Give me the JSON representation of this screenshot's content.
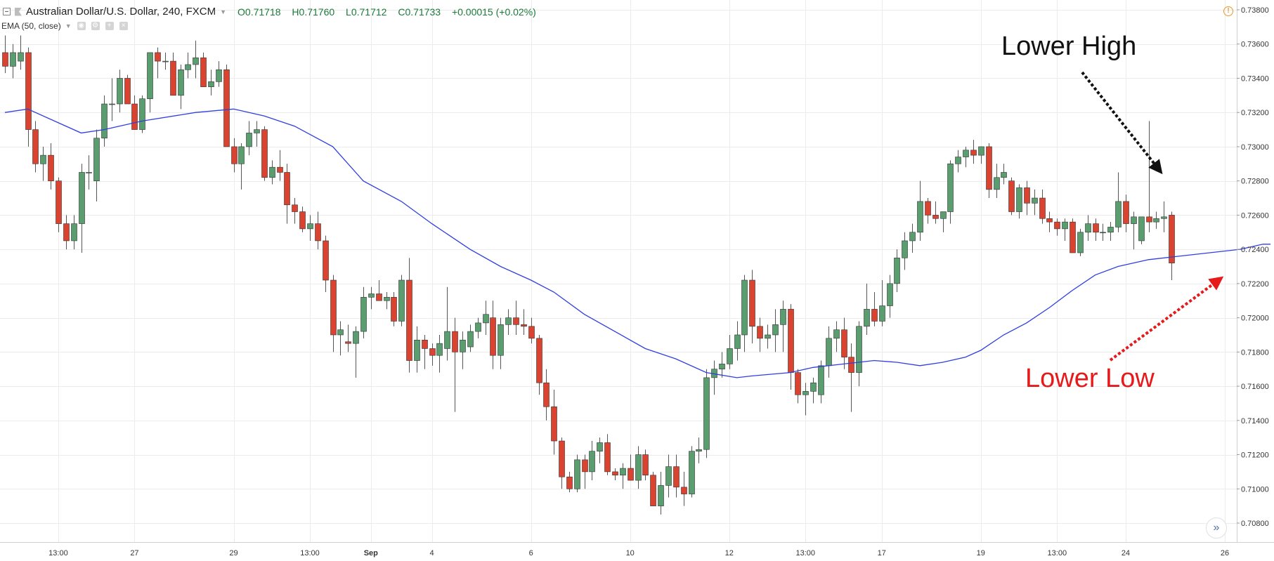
{
  "header": {
    "symbol": "Australian Dollar/U.S. Dollar, 240, FXCM",
    "open": "O0.71718",
    "high": "H0.71760",
    "low": "L0.71712",
    "close": "C0.71733",
    "change": "+0.00015 (+0.02%)",
    "indicator": "EMA (50, close)",
    "warn_icon": "!",
    "scroll_icon": "»"
  },
  "annotations": {
    "lower_high": "Lower High",
    "lower_low": "Lower Low"
  },
  "colors": {
    "up": "#5a9e6f",
    "down": "#d9432f",
    "ema": "#2f3fe0",
    "grid": "#ececec",
    "axis_text": "#333333",
    "lower_high_text": "#111111",
    "lower_low_text": "#e6191b"
  },
  "chart_data": {
    "type": "candlestick",
    "symbol": "AUD/USD",
    "y_ticks": [
      0.708,
      0.71,
      0.712,
      0.714,
      0.716,
      0.718,
      0.72,
      0.722,
      0.724,
      0.726,
      0.728,
      0.73,
      0.732,
      0.734,
      0.736,
      0.738
    ],
    "x_ticks": [
      {
        "i": 7,
        "label": "13:00"
      },
      {
        "i": 17,
        "label": "27"
      },
      {
        "i": 30,
        "label": "29"
      },
      {
        "i": 40,
        "label": "13:00"
      },
      {
        "i": 48,
        "label": "Sep"
      },
      {
        "i": 56,
        "label": "4"
      },
      {
        "i": 69,
        "label": "6"
      },
      {
        "i": 82,
        "label": "10"
      },
      {
        "i": 95,
        "label": "12"
      },
      {
        "i": 105,
        "label": "13:00"
      },
      {
        "i": 115,
        "label": "17"
      },
      {
        "i": 128,
        "label": "19"
      },
      {
        "i": 138,
        "label": "13:00"
      },
      {
        "i": 147,
        "label": "24"
      },
      {
        "i": 160,
        "label": "26"
      }
    ],
    "candles": [
      [
        0.7355,
        0.7365,
        0.7343,
        0.7347
      ],
      [
        0.7347,
        0.736,
        0.734,
        0.7355
      ],
      [
        0.735,
        0.7365,
        0.7345,
        0.7355
      ],
      [
        0.7355,
        0.7358,
        0.73,
        0.731
      ],
      [
        0.731,
        0.7315,
        0.7285,
        0.729
      ],
      [
        0.729,
        0.73,
        0.728,
        0.7295
      ],
      [
        0.7295,
        0.7302,
        0.7275,
        0.728
      ],
      [
        0.728,
        0.7282,
        0.725,
        0.7255
      ],
      [
        0.7255,
        0.726,
        0.724,
        0.7245
      ],
      [
        0.7245,
        0.726,
        0.724,
        0.7255
      ],
      [
        0.7255,
        0.729,
        0.7238,
        0.7285
      ],
      [
        0.7285,
        0.7295,
        0.7275,
        0.7285
      ],
      [
        0.728,
        0.731,
        0.7268,
        0.7305
      ],
      [
        0.7305,
        0.733,
        0.73,
        0.7325
      ],
      [
        0.7325,
        0.734,
        0.7315,
        0.7325
      ],
      [
        0.7325,
        0.7345,
        0.732,
        0.734
      ],
      [
        0.734,
        0.7342,
        0.7325,
        0.7325
      ],
      [
        0.7325,
        0.733,
        0.731,
        0.731
      ],
      [
        0.731,
        0.733,
        0.7308,
        0.7328
      ],
      [
        0.7328,
        0.7355,
        0.732,
        0.7355
      ],
      [
        0.7355,
        0.7358,
        0.734,
        0.735
      ],
      [
        0.735,
        0.7355,
        0.7345,
        0.735
      ],
      [
        0.735,
        0.7355,
        0.733,
        0.733
      ],
      [
        0.733,
        0.7348,
        0.7322,
        0.7345
      ],
      [
        0.7345,
        0.7355,
        0.734,
        0.7348
      ],
      [
        0.7348,
        0.7362,
        0.734,
        0.7352
      ],
      [
        0.7352,
        0.7355,
        0.7335,
        0.7335
      ],
      [
        0.7335,
        0.7345,
        0.733,
        0.7338
      ],
      [
        0.7338,
        0.735,
        0.7335,
        0.7345
      ],
      [
        0.7345,
        0.7348,
        0.73,
        0.73
      ],
      [
        0.73,
        0.7305,
        0.7285,
        0.729
      ],
      [
        0.729,
        0.7302,
        0.7275,
        0.73
      ],
      [
        0.73,
        0.7315,
        0.7295,
        0.7308
      ],
      [
        0.7308,
        0.7315,
        0.73,
        0.731
      ],
      [
        0.731,
        0.7312,
        0.728,
        0.7282
      ],
      [
        0.7282,
        0.7292,
        0.7278,
        0.7288
      ],
      [
        0.7288,
        0.7298,
        0.728,
        0.7285
      ],
      [
        0.7285,
        0.729,
        0.7255,
        0.7266
      ],
      [
        0.7266,
        0.727,
        0.7255,
        0.7262
      ],
      [
        0.7262,
        0.7265,
        0.725,
        0.7252
      ],
      [
        0.7252,
        0.726,
        0.7245,
        0.7255
      ],
      [
        0.7255,
        0.7262,
        0.724,
        0.7245
      ],
      [
        0.7245,
        0.7248,
        0.7215,
        0.7222
      ],
      [
        0.7222,
        0.7225,
        0.718,
        0.719
      ],
      [
        0.719,
        0.7198,
        0.7178,
        0.7193
      ],
      [
        0.7186,
        0.7196,
        0.718,
        0.7185
      ],
      [
        0.7185,
        0.7195,
        0.7165,
        0.7192
      ],
      [
        0.7192,
        0.7218,
        0.7188,
        0.7212
      ],
      [
        0.7212,
        0.7218,
        0.7205,
        0.7214
      ],
      [
        0.7214,
        0.7222,
        0.721,
        0.721
      ],
      [
        0.721,
        0.7215,
        0.7205,
        0.7212
      ],
      [
        0.7212,
        0.7215,
        0.7195,
        0.7198
      ],
      [
        0.7198,
        0.7225,
        0.7195,
        0.7222
      ],
      [
        0.7222,
        0.7235,
        0.7168,
        0.7175
      ],
      [
        0.7175,
        0.7195,
        0.7168,
        0.7187
      ],
      [
        0.7187,
        0.719,
        0.717,
        0.7182
      ],
      [
        0.7182,
        0.7185,
        0.7172,
        0.7178
      ],
      [
        0.7178,
        0.719,
        0.7168,
        0.7185
      ],
      [
        0.7182,
        0.7218,
        0.7175,
        0.7192
      ],
      [
        0.7192,
        0.72,
        0.7145,
        0.718
      ],
      [
        0.718,
        0.7192,
        0.717,
        0.7187
      ],
      [
        0.7183,
        0.7196,
        0.718,
        0.7192
      ],
      [
        0.7192,
        0.72,
        0.7188,
        0.7197
      ],
      [
        0.7197,
        0.721,
        0.719,
        0.7202
      ],
      [
        0.72,
        0.721,
        0.717,
        0.7178
      ],
      [
        0.7178,
        0.72,
        0.717,
        0.7196
      ],
      [
        0.7196,
        0.7205,
        0.719,
        0.72
      ],
      [
        0.72,
        0.721,
        0.719,
        0.7196
      ],
      [
        0.7196,
        0.7205,
        0.719,
        0.7195
      ],
      [
        0.7195,
        0.72,
        0.7185,
        0.7188
      ],
      [
        0.7188,
        0.719,
        0.7155,
        0.7162
      ],
      [
        0.7162,
        0.717,
        0.714,
        0.7148
      ],
      [
        0.7148,
        0.7158,
        0.712,
        0.7128
      ],
      [
        0.7128,
        0.713,
        0.71,
        0.7107
      ],
      [
        0.7107,
        0.711,
        0.7098,
        0.71
      ],
      [
        0.71,
        0.712,
        0.7098,
        0.7117
      ],
      [
        0.7117,
        0.712,
        0.71,
        0.711
      ],
      [
        0.711,
        0.7128,
        0.7105,
        0.7122
      ],
      [
        0.7122,
        0.713,
        0.7115,
        0.7127
      ],
      [
        0.7127,
        0.7132,
        0.7108,
        0.711
      ],
      [
        0.711,
        0.7112,
        0.7105,
        0.7108
      ],
      [
        0.7108,
        0.7115,
        0.71,
        0.7112
      ],
      [
        0.7112,
        0.712,
        0.7105,
        0.7105
      ],
      [
        0.7105,
        0.7125,
        0.71,
        0.712
      ],
      [
        0.712,
        0.7123,
        0.7105,
        0.7108
      ],
      [
        0.7108,
        0.711,
        0.709,
        0.709
      ],
      [
        0.709,
        0.711,
        0.7085,
        0.7102
      ],
      [
        0.7102,
        0.712,
        0.7095,
        0.7113
      ],
      [
        0.7113,
        0.712,
        0.7095,
        0.7101
      ],
      [
        0.7101,
        0.711,
        0.709,
        0.7097
      ],
      [
        0.7097,
        0.7125,
        0.7095,
        0.7122
      ],
      [
        0.7122,
        0.713,
        0.7115,
        0.7123
      ],
      [
        0.7123,
        0.717,
        0.7118,
        0.7165
      ],
      [
        0.7165,
        0.7175,
        0.7155,
        0.717
      ],
      [
        0.717,
        0.718,
        0.7165,
        0.7173
      ],
      [
        0.7173,
        0.719,
        0.717,
        0.7182
      ],
      [
        0.7182,
        0.7198,
        0.7175,
        0.719
      ],
      [
        0.719,
        0.7225,
        0.718,
        0.7222
      ],
      [
        0.7222,
        0.7228,
        0.7185,
        0.7195
      ],
      [
        0.7195,
        0.72,
        0.718,
        0.7188
      ],
      [
        0.7188,
        0.7196,
        0.7182,
        0.719
      ],
      [
        0.719,
        0.7205,
        0.718,
        0.7196
      ],
      [
        0.7196,
        0.721,
        0.718,
        0.7205
      ],
      [
        0.7205,
        0.7208,
        0.7158,
        0.7168
      ],
      [
        0.7168,
        0.717,
        0.715,
        0.7155
      ],
      [
        0.7155,
        0.7162,
        0.7143,
        0.7157
      ],
      [
        0.7157,
        0.7165,
        0.715,
        0.7162
      ],
      [
        0.7155,
        0.7175,
        0.715,
        0.7172
      ],
      [
        0.7172,
        0.7195,
        0.7165,
        0.7188
      ],
      [
        0.7188,
        0.7198,
        0.718,
        0.7193
      ],
      [
        0.7193,
        0.72,
        0.717,
        0.7177
      ],
      [
        0.7177,
        0.7185,
        0.7145,
        0.7168
      ],
      [
        0.7168,
        0.7198,
        0.716,
        0.7195
      ],
      [
        0.7195,
        0.722,
        0.719,
        0.7205
      ],
      [
        0.7205,
        0.7215,
        0.7195,
        0.7198
      ],
      [
        0.7198,
        0.7222,
        0.7195,
        0.7207
      ],
      [
        0.7207,
        0.7225,
        0.72,
        0.722
      ],
      [
        0.722,
        0.724,
        0.7215,
        0.7235
      ],
      [
        0.7235,
        0.725,
        0.7228,
        0.7245
      ],
      [
        0.7245,
        0.7255,
        0.7238,
        0.725
      ],
      [
        0.725,
        0.728,
        0.7245,
        0.7268
      ],
      [
        0.7268,
        0.727,
        0.7255,
        0.726
      ],
      [
        0.726,
        0.7268,
        0.7255,
        0.7258
      ],
      [
        0.7258,
        0.7262,
        0.725,
        0.7262
      ],
      [
        0.7262,
        0.7292,
        0.7255,
        0.729
      ],
      [
        0.729,
        0.7298,
        0.7285,
        0.7294
      ],
      [
        0.7294,
        0.73,
        0.7288,
        0.7298
      ],
      [
        0.7298,
        0.7304,
        0.729,
        0.7295
      ],
      [
        0.7295,
        0.73,
        0.729,
        0.73
      ],
      [
        0.73,
        0.7302,
        0.727,
        0.7275
      ],
      [
        0.7275,
        0.729,
        0.727,
        0.7282
      ],
      [
        0.7282,
        0.729,
        0.7278,
        0.7285
      ],
      [
        0.728,
        0.7282,
        0.726,
        0.7262
      ],
      [
        0.7262,
        0.7278,
        0.7258,
        0.7276
      ],
      [
        0.7276,
        0.728,
        0.726,
        0.7267
      ],
      [
        0.7267,
        0.7275,
        0.726,
        0.727
      ],
      [
        0.727,
        0.7275,
        0.7255,
        0.7258
      ],
      [
        0.7258,
        0.7262,
        0.725,
        0.7256
      ],
      [
        0.7256,
        0.7258,
        0.7248,
        0.7252
      ],
      [
        0.7252,
        0.7258,
        0.7245,
        0.7256
      ],
      [
        0.7256,
        0.7258,
        0.7238,
        0.7238
      ],
      [
        0.7238,
        0.7252,
        0.7236,
        0.725
      ],
      [
        0.725,
        0.726,
        0.7245,
        0.7255
      ],
      [
        0.7255,
        0.7258,
        0.7245,
        0.725
      ],
      [
        0.725,
        0.7255,
        0.7245,
        0.725
      ],
      [
        0.725,
        0.7256,
        0.7245,
        0.7253
      ],
      [
        0.7253,
        0.7285,
        0.725,
        0.7268
      ],
      [
        0.7268,
        0.7272,
        0.725,
        0.7255
      ],
      [
        0.7255,
        0.7262,
        0.724,
        0.7259
      ],
      [
        0.7245,
        0.7258,
        0.7243,
        0.7259
      ],
      [
        0.7259,
        0.7315,
        0.725,
        0.7256
      ],
      [
        0.7256,
        0.7262,
        0.7252,
        0.7258
      ],
      [
        0.7258,
        0.7268,
        0.725,
        0.7259
      ],
      [
        0.726,
        0.7262,
        0.7222,
        0.7232
      ]
    ],
    "ema": [
      [
        0,
        0.732
      ],
      [
        3,
        0.7322
      ],
      [
        10,
        0.7308
      ],
      [
        13,
        0.731
      ],
      [
        18,
        0.7315
      ],
      [
        25,
        0.732
      ],
      [
        30,
        0.7322
      ],
      [
        34,
        0.7318
      ],
      [
        38,
        0.7312
      ],
      [
        43,
        0.73
      ],
      [
        47,
        0.728
      ],
      [
        52,
        0.7268
      ],
      [
        56,
        0.7255
      ],
      [
        61,
        0.724
      ],
      [
        65,
        0.723
      ],
      [
        69,
        0.7222
      ],
      [
        72,
        0.7215
      ],
      [
        76,
        0.7202
      ],
      [
        80,
        0.7192
      ],
      [
        84,
        0.7182
      ],
      [
        88,
        0.7176
      ],
      [
        92,
        0.7168
      ],
      [
        96,
        0.7165
      ],
      [
        98,
        0.7166
      ],
      [
        103,
        0.7168
      ],
      [
        106,
        0.7171
      ],
      [
        110,
        0.7173
      ],
      [
        114,
        0.7175
      ],
      [
        117,
        0.7174
      ],
      [
        120,
        0.7172
      ],
      [
        123,
        0.7174
      ],
      [
        126,
        0.7177
      ],
      [
        128,
        0.7181
      ],
      [
        131,
        0.719
      ],
      [
        134,
        0.7197
      ],
      [
        137,
        0.7206
      ],
      [
        140,
        0.7216
      ],
      [
        143,
        0.7225
      ],
      [
        146,
        0.723
      ],
      [
        150,
        0.7234
      ],
      [
        154,
        0.7236
      ],
      [
        158,
        0.7238
      ],
      [
        162,
        0.724
      ],
      [
        165,
        0.7243
      ],
      [
        166,
        0.7243
      ]
    ]
  }
}
